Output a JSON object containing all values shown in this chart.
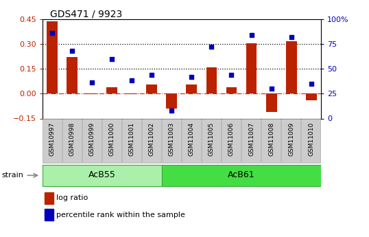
{
  "title": "GDS471 / 9923",
  "categories": [
    "GSM10997",
    "GSM10998",
    "GSM10999",
    "GSM11000",
    "GSM11001",
    "GSM11002",
    "GSM11003",
    "GSM11004",
    "GSM11005",
    "GSM11006",
    "GSM11007",
    "GSM11008",
    "GSM11009",
    "GSM11010"
  ],
  "log_ratio": [
    0.435,
    0.22,
    -0.005,
    0.04,
    -0.005,
    0.055,
    -0.09,
    0.055,
    0.16,
    0.04,
    0.305,
    -0.11,
    0.315,
    -0.04
  ],
  "percentile_rank": [
    86,
    68,
    36,
    60,
    38,
    44,
    8,
    42,
    72,
    44,
    84,
    30,
    82,
    35
  ],
  "groups": [
    {
      "label": "AcB55",
      "start": 0,
      "end": 5,
      "color": "#aaf0aa"
    },
    {
      "label": "AcB61",
      "start": 6,
      "end": 13,
      "color": "#44dd44"
    }
  ],
  "ylim_left": [
    -0.15,
    0.45
  ],
  "ylim_right": [
    0,
    100
  ],
  "yticks_left": [
    -0.15,
    0.0,
    0.15,
    0.3,
    0.45
  ],
  "yticks_right": [
    0,
    25,
    50,
    75,
    100
  ],
  "hlines": [
    0.15,
    0.3
  ],
  "bar_color": "#BB2200",
  "dot_color": "#0000BB",
  "zero_line_color": "#CC2200",
  "strain_label": "strain",
  "legend_log_ratio": "log ratio",
  "legend_percentile": "percentile rank within the sample",
  "tick_bg_color": "#cccccc",
  "tick_edge_color": "#aaaaaa"
}
